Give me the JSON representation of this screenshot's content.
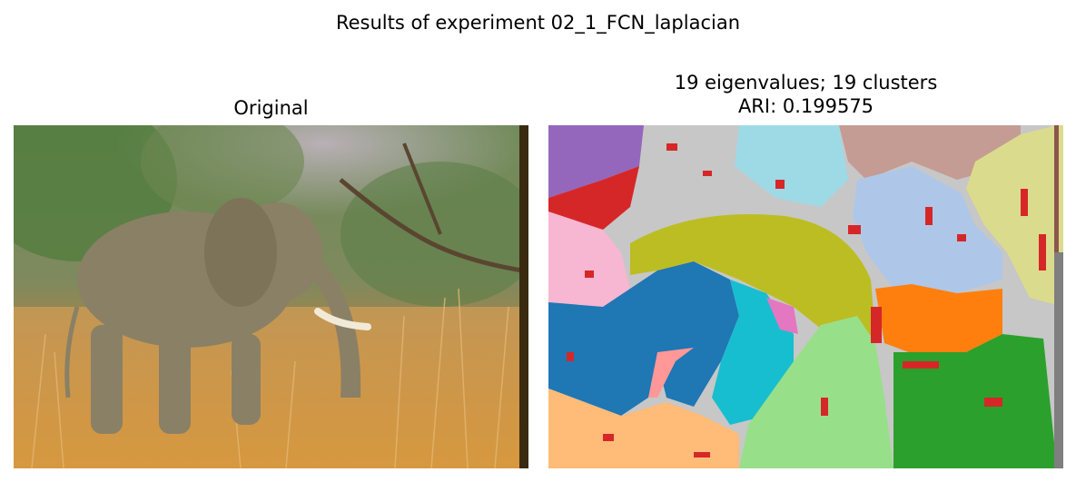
{
  "figure": {
    "suptitle": "Results of experiment 02_1_FCN_laplacian"
  },
  "left": {
    "title": "Original"
  },
  "right": {
    "title_line1": "19 eigenvalues; 19 clusters",
    "title_line2": "ARI: 0.199575"
  },
  "colors": {
    "sky_purple": "#9467bd",
    "grey": "#c7c7c7",
    "light_blue": "#9edae5",
    "rose": "#c49c94",
    "periwinkle": "#aec7e8",
    "khaki": "#dbdb8d",
    "olive": "#bcbd22",
    "pink": "#f7b6d2",
    "blue": "#1f77b4",
    "cyan": "#17becf",
    "orange": "#ff7f0e",
    "light_green": "#98df8a",
    "green": "#2ca02c",
    "peach": "#ffbb78",
    "red": "#d62728",
    "salmon": "#ff9896",
    "magenta": "#e377c2",
    "brown": "#8c564b",
    "dark_grey": "#7f7f7f"
  }
}
